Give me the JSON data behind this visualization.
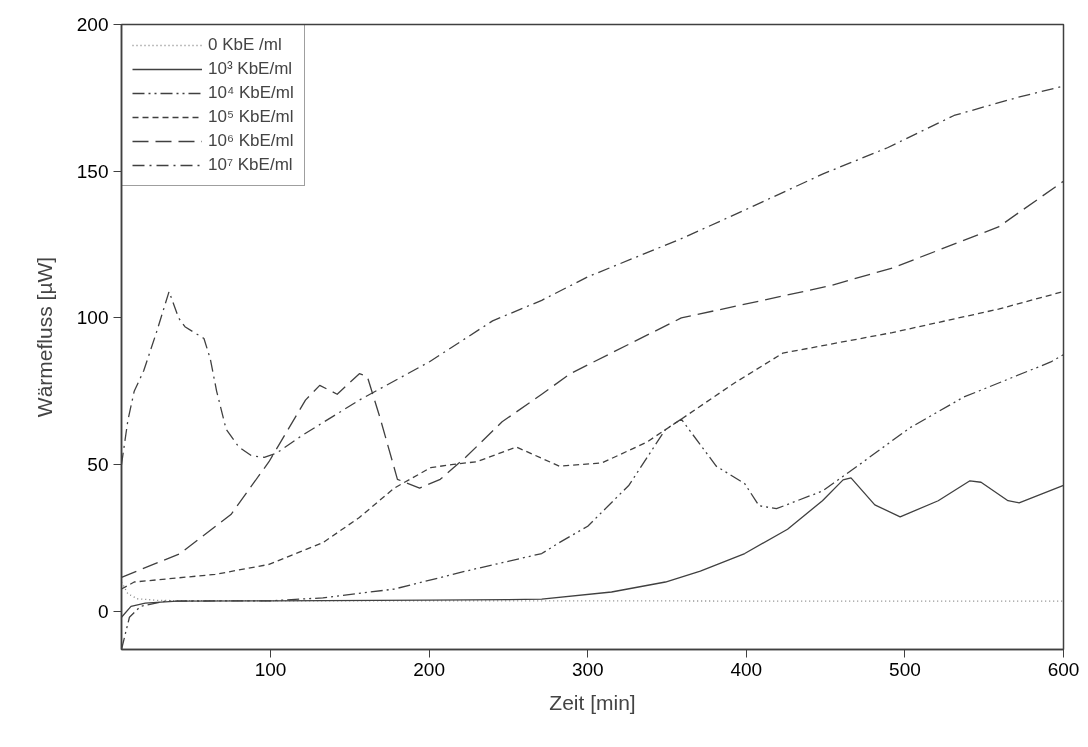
{
  "chart_data": {
    "type": "line",
    "xlabel": "Zeit [min]",
    "ylabel": "Wärmefluss [µW]",
    "xlim": [
      6,
      600
    ],
    "ylim": [
      -13,
      200
    ],
    "xticks": [
      100,
      200,
      300,
      400,
      500,
      600
    ],
    "yticks": [
      0,
      50,
      100,
      150,
      200
    ],
    "grid": false,
    "legend": "top left",
    "marker": "none",
    "series": [
      {
        "name": "0 KbE /ml",
        "color": "#808080",
        "line_style": "dotted",
        "x": [
          6,
          10,
          16,
          30,
          100,
          200,
          300,
          400,
          500,
          600
        ],
        "values": [
          10,
          6,
          4.3,
          3.7,
          3.6,
          3.6,
          3.6,
          3.5,
          3.5,
          3.5
        ]
      },
      {
        "name": "10³ KbE/ml",
        "color": "#404040",
        "line_style": "solid",
        "x": [
          6,
          12,
          21,
          41,
          100,
          200,
          250,
          271,
          315,
          349,
          371,
          399,
          426,
          448,
          461,
          466,
          481,
          497,
          521,
          541,
          548,
          565,
          572,
          600
        ],
        "values": [
          -2,
          1.7,
          2.8,
          3.5,
          3.6,
          3.8,
          4,
          4.2,
          6.6,
          10,
          13.7,
          19.7,
          28,
          37.7,
          44.8,
          45.5,
          36.3,
          32.2,
          37.7,
          44.5,
          44,
          37.7,
          37,
          42.9
        ]
      },
      {
        "name": "10⁴ KbE/ml",
        "color": "#404040",
        "line_style": "dashdotdot",
        "x": [
          6,
          11,
          18,
          34,
          100,
          133,
          178,
          223,
          271,
          282,
          300,
          326,
          349,
          359,
          381,
          399,
          408,
          419,
          448,
          470,
          503,
          537,
          592,
          600
        ],
        "values": [
          -13,
          -2,
          1.7,
          3.5,
          3.6,
          4.6,
          7.6,
          13.7,
          19.7,
          23.4,
          29,
          43,
          62,
          65.5,
          49.5,
          43.5,
          36,
          35,
          41,
          49.5,
          62.5,
          73,
          85,
          87.5
        ]
      },
      {
        "name": "10⁵ KbE/ml",
        "color": "#404040",
        "line_style": "dashed",
        "x": [
          6,
          14,
          65,
          99,
          133,
          156,
          178,
          201,
          214,
          230,
          255,
          282,
          309,
          337,
          359,
          393,
          423,
          492,
          559,
          600
        ],
        "values": [
          7.6,
          10,
          12.6,
          16,
          23.4,
          32,
          42,
          49,
          50,
          51,
          56,
          49.5,
          50.6,
          57.6,
          65.5,
          78,
          88,
          95,
          103,
          109
        ]
      },
      {
        "name": "10⁶ KbE/ml",
        "color": "#404040",
        "line_style": "longdash",
        "x": [
          6,
          43,
          75,
          99,
          122,
          131,
          142,
          156,
          161,
          169,
          180,
          194,
          207,
          223,
          246,
          271,
          289,
          359,
          453,
          492,
          559,
          600
        ],
        "values": [
          11.6,
          19.7,
          33,
          51,
          72,
          77,
          74,
          81,
          80,
          66,
          45,
          42,
          45,
          52.5,
          64.6,
          74,
          81,
          100,
          111,
          117,
          131,
          146.6
        ]
      },
      {
        "name": "10⁷ KbE/ml",
        "color": "#404040",
        "line_style": "dashdot",
        "x": [
          6,
          10,
          14,
          20,
          28,
          36,
          42,
          46,
          52,
          58,
          62,
          66,
          72,
          80,
          88,
          96,
          104,
          120,
          156,
          200,
          240,
          271,
          300,
          359,
          400,
          448,
          489,
          531,
          570,
          600
        ],
        "values": [
          50,
          65,
          75,
          82,
          95,
          109,
          100,
          97,
          95,
          93,
          86,
          75,
          62,
          56,
          53,
          52.5,
          54,
          60,
          72,
          85,
          99,
          106,
          114,
          127,
          137,
          149,
          158,
          169,
          175,
          179
        ]
      }
    ]
  }
}
